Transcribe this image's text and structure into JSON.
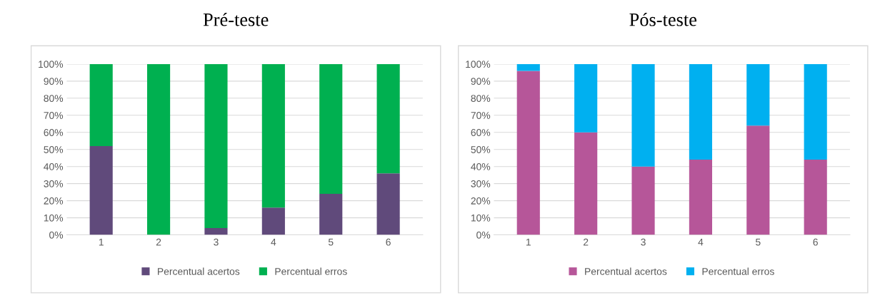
{
  "chart_data": [
    {
      "type": "bar",
      "title": "Pré-teste",
      "stacked": true,
      "categories": [
        "1",
        "2",
        "3",
        "4",
        "5",
        "6"
      ],
      "series": [
        {
          "name": "Percentual acertos",
          "color": "#604a7b",
          "values": [
            52,
            0,
            4,
            16,
            24,
            36
          ]
        },
        {
          "name": "Percentual erros",
          "color": "#00b050",
          "values": [
            48,
            100,
            96,
            84,
            76,
            64
          ]
        }
      ],
      "ylim": [
        0,
        100
      ],
      "yticks": [
        {
          "value": 0,
          "label": "0%"
        },
        {
          "value": 10,
          "label": "10%"
        },
        {
          "value": 20,
          "label": "20%"
        },
        {
          "value": 30,
          "label": "30%"
        },
        {
          "value": 40,
          "label": "40%"
        },
        {
          "value": 50,
          "label": "50%"
        },
        {
          "value": 60,
          "label": "60%"
        },
        {
          "value": 70,
          "label": "70%"
        },
        {
          "value": 80,
          "label": "80%"
        },
        {
          "value": 90,
          "label": "90%"
        },
        {
          "value": 100,
          "label": "100%"
        }
      ],
      "grid": "y",
      "legend": "bottom"
    },
    {
      "type": "bar",
      "title": "Pós-teste",
      "stacked": true,
      "categories": [
        "1",
        "2",
        "3",
        "4",
        "5",
        "6"
      ],
      "series": [
        {
          "name": "Percentual acertos",
          "color": "#b65699",
          "values": [
            96,
            60,
            40,
            44,
            64,
            44
          ]
        },
        {
          "name": "Percentual erros",
          "color": "#00b0f0",
          "values": [
            4,
            40,
            60,
            56,
            36,
            56
          ]
        }
      ],
      "ylim": [
        0,
        100
      ],
      "yticks": [
        {
          "value": 0,
          "label": "0%"
        },
        {
          "value": 10,
          "label": "10%"
        },
        {
          "value": 20,
          "label": "20%"
        },
        {
          "value": 30,
          "label": "30%"
        },
        {
          "value": 40,
          "label": "40%"
        },
        {
          "value": 50,
          "label": "50%"
        },
        {
          "value": 60,
          "label": "60%"
        },
        {
          "value": 70,
          "label": "70%"
        },
        {
          "value": 80,
          "label": "80%"
        },
        {
          "value": 90,
          "label": "90%"
        },
        {
          "value": 100,
          "label": "100%"
        }
      ],
      "grid": "y",
      "legend": "bottom"
    }
  ]
}
